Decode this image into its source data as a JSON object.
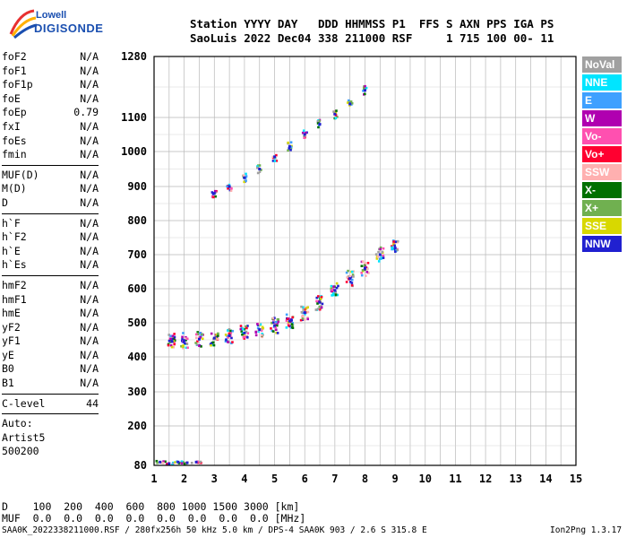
{
  "logo": {
    "top": "Lowell",
    "bottom": "DIGISONDE"
  },
  "header": {
    "row1": "Station YYYY DAY   DDD HHMMSS P1  FFS S AXN PPS IGA PS",
    "row2": "SaoLuis 2022 Dec04 338 211000 RSF     1 715 100 00- 11"
  },
  "params": {
    "group1": [
      {
        "name": "foF2",
        "value": "N/A"
      },
      {
        "name": "foF1",
        "value": "N/A"
      },
      {
        "name": "foF1p",
        "value": "N/A"
      },
      {
        "name": "foE",
        "value": "N/A"
      },
      {
        "name": "foEp",
        "value": "0.79"
      },
      {
        "name": "fxI",
        "value": "N/A"
      },
      {
        "name": "foEs",
        "value": "N/A"
      },
      {
        "name": "fmin",
        "value": "N/A"
      }
    ],
    "group2": [
      {
        "name": "MUF(D)",
        "value": "N/A"
      },
      {
        "name": "M(D)",
        "value": "N/A"
      },
      {
        "name": "D",
        "value": "N/A"
      }
    ],
    "group3": [
      {
        "name": "h`F",
        "value": "N/A"
      },
      {
        "name": "h`F2",
        "value": "N/A"
      },
      {
        "name": "h`E",
        "value": "N/A"
      },
      {
        "name": "h`Es",
        "value": "N/A"
      }
    ],
    "group4": [
      {
        "name": "hmF2",
        "value": "N/A"
      },
      {
        "name": "hmF1",
        "value": "N/A"
      },
      {
        "name": "hmE",
        "value": "N/A"
      },
      {
        "name": "yF2",
        "value": "N/A"
      },
      {
        "name": "yF1",
        "value": "N/A"
      },
      {
        "name": "yE",
        "value": "N/A"
      },
      {
        "name": "B0",
        "value": "N/A"
      },
      {
        "name": "B1",
        "value": "N/A"
      }
    ],
    "group5": [
      {
        "name": "C-level",
        "value": "44"
      }
    ]
  },
  "autoscaling": {
    "line1": "Auto:",
    "line2": "Artist5",
    "line3": "500200"
  },
  "legend": [
    {
      "label": "NoVal",
      "color": "#a0a0a0"
    },
    {
      "label": "NNE",
      "color": "#00e5ff"
    },
    {
      "label": "E",
      "color": "#3ea0ff"
    },
    {
      "label": "W",
      "color": "#b000b0"
    },
    {
      "label": "Vo-",
      "color": "#ff50b0"
    },
    {
      "label": "Vo+",
      "color": "#ff0030"
    },
    {
      "label": "SSW",
      "color": "#ffb0b0"
    },
    {
      "label": "X-",
      "color": "#007000"
    },
    {
      "label": "X+",
      "color": "#70b050"
    },
    {
      "label": "SSE",
      "color": "#d8d800"
    },
    {
      "label": "NNW",
      "color": "#2020d0"
    }
  ],
  "bottom": {
    "d_row": "D    100  200  400  600  800 1000 1500 3000 [km]",
    "muf_row": "MUF  0.0  0.0  0.0  0.0  0.0  0.0  0.0  0.0 [MHz]"
  },
  "footer": {
    "left": "SAA0K_2022338211000.RSF / 280fx256h 50 kHz 5.0 km / DPS-4 SAA0K 903 / 2.6 S 315.8 E",
    "right": "Ion2Png 1.3.17"
  },
  "chart_data": {
    "type": "scatter",
    "title": "",
    "xlabel": "",
    "ylabel": "",
    "xlim": [
      1,
      15
    ],
    "ylim": [
      80,
      1280
    ],
    "x_ticks": [
      1,
      2,
      3,
      4,
      5,
      6,
      7,
      8,
      9,
      10,
      11,
      12,
      13,
      14,
      15
    ],
    "y_ticks": [
      80,
      200,
      300,
      400,
      500,
      600,
      700,
      800,
      900,
      1000,
      1100,
      1280
    ],
    "grid": true,
    "y_scale": "nonlinear (ionogram virtual height)",
    "series": [
      {
        "trace": "low_height_echoes",
        "x": [
          1.2,
          1.5,
          1.8,
          2.1,
          2.4
        ],
        "y": [
          90,
          85,
          90,
          88,
          90
        ]
      },
      {
        "trace": "f_layer_first_hop",
        "x": [
          1.6,
          2.0,
          2.5,
          3.0,
          3.5,
          4.0,
          4.5,
          5.0,
          5.5,
          6.0,
          6.5,
          7.0,
          7.5,
          8.0,
          8.5,
          9.0
        ],
        "y": [
          445,
          448,
          452,
          455,
          462,
          470,
          480,
          492,
          505,
          530,
          560,
          595,
          630,
          660,
          700,
          720
        ]
      },
      {
        "trace": "f_layer_second_hop",
        "x": [
          3.0,
          3.5,
          4.0,
          4.5,
          5.0,
          5.5,
          6.0,
          6.5,
          7.0,
          7.5,
          8.0
        ],
        "y": [
          880,
          900,
          925,
          950,
          985,
          1015,
          1050,
          1080,
          1110,
          1140,
          1180
        ]
      }
    ]
  }
}
